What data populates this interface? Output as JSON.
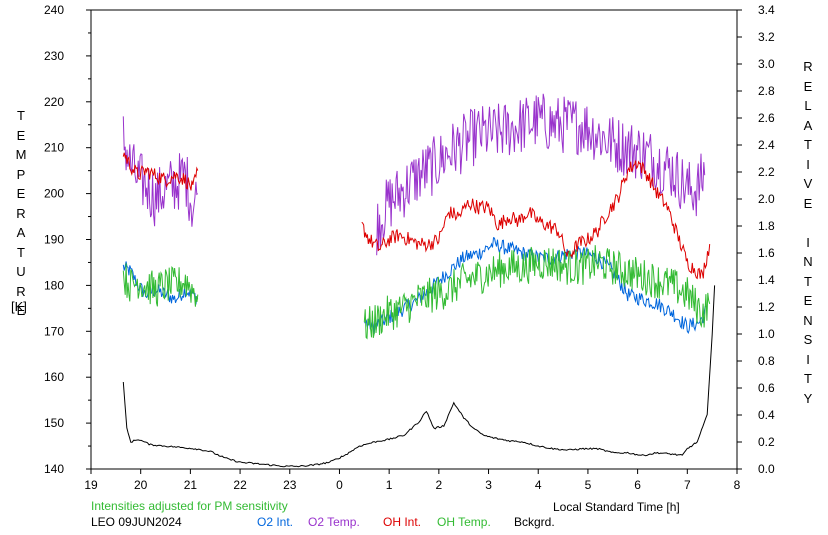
{
  "chart_data": {
    "type": "line",
    "title": "",
    "xlabel": "Local Standard Time [h]",
    "ylabel_left": "TEMPERATURE",
    "ylabel_left_unit": "[K]",
    "ylabel_right": "RELATIVE INTENSITY",
    "x_tick_labels": [
      "19",
      "20",
      "21",
      "22",
      "23",
      "0",
      "1",
      "2",
      "3",
      "4",
      "5",
      "6",
      "7",
      "8"
    ],
    "y_left_ticks": [
      140,
      150,
      160,
      170,
      180,
      190,
      200,
      210,
      220,
      230,
      240
    ],
    "y_right_ticks": [
      "0.0",
      "0.2",
      "0.4",
      "0.6",
      "0.8",
      "1.0",
      "1.2",
      "1.4",
      "1.6",
      "1.8",
      "2.0",
      "2.2",
      "2.4",
      "2.6",
      "2.8",
      "3.0",
      "3.2",
      "3.4"
    ],
    "xlim": [
      19,
      32
    ],
    "ylim_left": [
      140,
      240
    ],
    "ylim_right": [
      0,
      3.4
    ],
    "grid": false,
    "legend_placement": "bottom",
    "series": [
      {
        "name": "O2 Int.",
        "color": "#0066dd",
        "axis": "left",
        "segments": [
          [
            [
              19.65,
              184
            ],
            [
              19.8,
              183
            ],
            [
              19.95,
              180
            ],
            [
              20.1,
              178
            ],
            [
              20.3,
              179
            ],
            [
              20.5,
              178
            ],
            [
              20.7,
              177
            ],
            [
              20.9,
              179
            ],
            [
              21.05,
              178
            ],
            [
              21.15,
              177
            ]
          ],
          [
            [
              24.5,
              172
            ],
            [
              24.7,
              171
            ],
            [
              25.0,
              173
            ],
            [
              25.3,
              175
            ],
            [
              25.6,
              177
            ],
            [
              25.9,
              180
            ],
            [
              26.2,
              183
            ],
            [
              26.5,
              186
            ],
            [
              26.8,
              187
            ],
            [
              27.1,
              189
            ],
            [
              27.4,
              188
            ],
            [
              27.7,
              187
            ],
            [
              28.0,
              186
            ],
            [
              28.3,
              186
            ],
            [
              28.6,
              187
            ],
            [
              28.9,
              187
            ],
            [
              29.2,
              186
            ],
            [
              29.5,
              183
            ],
            [
              29.8,
              178
            ],
            [
              30.1,
              177
            ],
            [
              30.4,
              176
            ],
            [
              30.7,
              174
            ],
            [
              31.0,
              171
            ],
            [
              31.25,
              172
            ],
            [
              31.4,
              175
            ]
          ]
        ]
      },
      {
        "name": "O2 Temp.",
        "color": "#9933cc",
        "axis": "left",
        "segments": [
          [
            [
              19.65,
              212
            ],
            [
              19.8,
              206
            ],
            [
              19.95,
              203
            ],
            [
              20.1,
              202
            ],
            [
              20.3,
              199
            ],
            [
              20.5,
              201
            ],
            [
              20.7,
              202
            ],
            [
              20.9,
              204
            ],
            [
              21.05,
              197
            ],
            [
              21.15,
              200
            ]
          ],
          [
            [
              24.75,
              193
            ],
            [
              25.0,
              198
            ],
            [
              25.3,
              201
            ],
            [
              25.6,
              204
            ],
            [
              25.9,
              206
            ],
            [
              26.2,
              209
            ],
            [
              26.5,
              211
            ],
            [
              26.8,
              213
            ],
            [
              27.1,
              213
            ],
            [
              27.4,
              214
            ],
            [
              27.7,
              215
            ],
            [
              28.0,
              216
            ],
            [
              28.3,
              215
            ],
            [
              28.6,
              215
            ],
            [
              28.9,
              215
            ],
            [
              29.2,
              213
            ],
            [
              29.5,
              211
            ],
            [
              29.8,
              210
            ],
            [
              30.1,
              209
            ],
            [
              30.4,
              207
            ],
            [
              30.7,
              205
            ],
            [
              31.0,
              201
            ],
            [
              31.2,
              201
            ],
            [
              31.35,
              204
            ]
          ]
        ]
      },
      {
        "name": "OH Int.",
        "color": "#dd0000",
        "axis": "left",
        "segments": [
          [
            [
              19.65,
              209
            ],
            [
              19.8,
              206
            ],
            [
              19.95,
              204
            ],
            [
              20.1,
              205
            ],
            [
              20.3,
              204
            ],
            [
              20.5,
              203
            ],
            [
              20.7,
              204
            ],
            [
              20.9,
              203
            ],
            [
              21.05,
              201
            ],
            [
              21.15,
              205
            ]
          ],
          [
            [
              24.45,
              193
            ],
            [
              24.6,
              190
            ],
            [
              24.8,
              188
            ],
            [
              25.0,
              190
            ],
            [
              25.2,
              191
            ],
            [
              25.4,
              190
            ],
            [
              25.6,
              189
            ],
            [
              25.8,
              189
            ],
            [
              26.0,
              190
            ],
            [
              26.2,
              196
            ],
            [
              26.4,
              195
            ],
            [
              26.6,
              198
            ],
            [
              26.8,
              197
            ],
            [
              27.0,
              197
            ],
            [
              27.2,
              193
            ],
            [
              27.4,
              195
            ],
            [
              27.6,
              194
            ],
            [
              27.8,
              196
            ],
            [
              28.0,
              194
            ],
            [
              28.2,
              193
            ],
            [
              28.4,
              192
            ],
            [
              28.6,
              186
            ],
            [
              28.8,
              189
            ],
            [
              29.0,
              190
            ],
            [
              29.2,
              192
            ],
            [
              29.4,
              196
            ],
            [
              29.6,
              199
            ],
            [
              29.8,
              205
            ],
            [
              30.0,
              207
            ],
            [
              30.2,
              204
            ],
            [
              30.4,
              200
            ],
            [
              30.6,
              197
            ],
            [
              30.8,
              191
            ],
            [
              31.0,
              185
            ],
            [
              31.2,
              183
            ],
            [
              31.3,
              182
            ],
            [
              31.45,
              189
            ]
          ]
        ]
      },
      {
        "name": "OH Temp.",
        "color": "#33bb33",
        "axis": "left",
        "segments": [
          [
            [
              19.65,
              182
            ],
            [
              19.8,
              180
            ],
            [
              19.95,
              181
            ],
            [
              20.1,
              180
            ],
            [
              20.3,
              179
            ],
            [
              20.5,
              180
            ],
            [
              20.7,
              180
            ],
            [
              20.9,
              181
            ],
            [
              21.05,
              179
            ],
            [
              21.15,
              178
            ]
          ],
          [
            [
              24.5,
              171
            ],
            [
              24.7,
              172
            ],
            [
              25.0,
              174
            ],
            [
              25.3,
              175
            ],
            [
              25.6,
              177
            ],
            [
              25.9,
              178
            ],
            [
              26.2,
              179
            ],
            [
              26.5,
              181
            ],
            [
              26.8,
              182
            ],
            [
              27.1,
              183
            ],
            [
              27.4,
              184
            ],
            [
              27.7,
              184
            ],
            [
              28.0,
              185
            ],
            [
              28.3,
              185
            ],
            [
              28.6,
              184
            ],
            [
              28.9,
              184
            ],
            [
              29.2,
              185
            ],
            [
              29.5,
              184
            ],
            [
              29.8,
              183
            ],
            [
              30.1,
              182
            ],
            [
              30.4,
              181
            ],
            [
              30.7,
              180
            ],
            [
              31.0,
              178
            ],
            [
              31.3,
              174
            ],
            [
              31.45,
              176
            ]
          ]
        ]
      },
      {
        "name": "Bckgrd.",
        "color": "#000000",
        "axis": "right",
        "points": [
          [
            19.65,
            0.65
          ],
          [
            19.72,
            0.3
          ],
          [
            19.8,
            0.2
          ],
          [
            19.95,
            0.22
          ],
          [
            20.2,
            0.18
          ],
          [
            20.5,
            0.17
          ],
          [
            20.8,
            0.16
          ],
          [
            21.1,
            0.15
          ],
          [
            21.4,
            0.13
          ],
          [
            21.7,
            0.08
          ],
          [
            22.0,
            0.05
          ],
          [
            22.3,
            0.04
          ],
          [
            22.6,
            0.03
          ],
          [
            22.9,
            0.02
          ],
          [
            23.2,
            0.02
          ],
          [
            23.5,
            0.03
          ],
          [
            23.8,
            0.05
          ],
          [
            24.1,
            0.1
          ],
          [
            24.4,
            0.17
          ],
          [
            24.7,
            0.2
          ],
          [
            25.0,
            0.22
          ],
          [
            25.3,
            0.25
          ],
          [
            25.6,
            0.35
          ],
          [
            25.75,
            0.43
          ],
          [
            25.9,
            0.3
          ],
          [
            26.1,
            0.32
          ],
          [
            26.3,
            0.49
          ],
          [
            26.5,
            0.38
          ],
          [
            26.7,
            0.3
          ],
          [
            26.9,
            0.25
          ],
          [
            27.1,
            0.23
          ],
          [
            27.4,
            0.21
          ],
          [
            27.7,
            0.2
          ],
          [
            28.0,
            0.17
          ],
          [
            28.3,
            0.15
          ],
          [
            28.6,
            0.14
          ],
          [
            28.9,
            0.15
          ],
          [
            29.2,
            0.15
          ],
          [
            29.5,
            0.12
          ],
          [
            29.8,
            0.12
          ],
          [
            30.1,
            0.1
          ],
          [
            30.4,
            0.12
          ],
          [
            30.7,
            0.11
          ],
          [
            30.9,
            0.1
          ],
          [
            31.0,
            0.15
          ],
          [
            31.2,
            0.2
          ],
          [
            31.4,
            0.4
          ],
          [
            31.5,
            1.0
          ],
          [
            31.55,
            1.36
          ]
        ]
      }
    ],
    "annotations": {
      "note": "Intensities adjusted for PM sensitivity",
      "station_date": "LEO 09JUN2024"
    }
  },
  "colors": {
    "note": "#33bb33",
    "axis": "#000000"
  }
}
